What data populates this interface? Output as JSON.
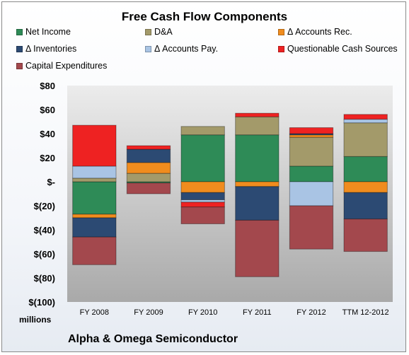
{
  "chart_data": {
    "type": "bar",
    "stacked": true,
    "title": "Free Cash Flow Components",
    "units": "millions",
    "company": "Alpha & Omega Semiconductor",
    "categories": [
      "FY 2008",
      "FY 2009",
      "FY 2010",
      "FY 2011",
      "FY 2012",
      "TTM 12-2012"
    ],
    "ylim": [
      -100,
      80
    ],
    "yticks": [
      -100,
      -80,
      -60,
      -40,
      -20,
      0,
      20,
      40,
      60,
      80
    ],
    "ytick_labels": [
      "$(100)",
      "$(80)",
      "$(60)",
      "$(40)",
      "$(20)",
      "$-",
      "$20",
      "$40",
      "$60",
      "$80"
    ],
    "grid": false,
    "legend_position": "top",
    "series": [
      {
        "name": "Net Income",
        "color": "#2e8b57",
        "values": [
          -27,
          -1,
          39,
          39,
          13,
          21
        ]
      },
      {
        "name": "D&A",
        "color": "#a39a6a",
        "values": [
          3,
          7,
          7,
          15,
          24,
          28
        ]
      },
      {
        "name": "Δ Accounts Rec.",
        "color": "#f08c1e",
        "values": [
          -3,
          9,
          -9,
          -4,
          2,
          -9
        ]
      },
      {
        "name": "Δ Inventories",
        "color": "#2c4a73",
        "values": [
          -16,
          11,
          -6,
          -28,
          1,
          -22
        ]
      },
      {
        "name": "Δ Accounts Pay.",
        "color": "#a9c4e4",
        "values": [
          10,
          0,
          -2,
          0,
          -20,
          3
        ]
      },
      {
        "name": "Questionable Cash Sources",
        "color": "#ee2222",
        "values": [
          34,
          3,
          -4,
          3,
          5,
          4
        ]
      },
      {
        "name": "Capital Expenditures",
        "color": "#a3484d",
        "values": [
          -23,
          -9,
          -14,
          -47,
          -36,
          -27
        ]
      }
    ]
  }
}
